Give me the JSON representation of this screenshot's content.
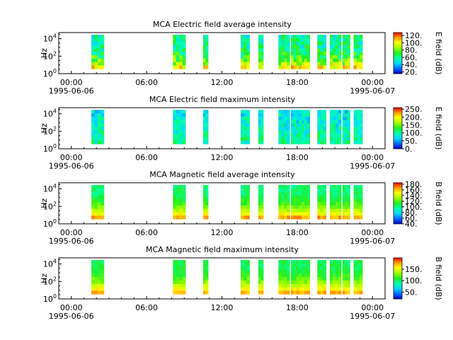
{
  "chart_data": [
    {
      "type": "heatmap",
      "title": "MCA  Electric field average intensity",
      "ylabel": "Hz",
      "colorbar_label": "E field (dB)",
      "colorbar_ticks": [
        "20.",
        "40.",
        "60.",
        "80.",
        "100.",
        "120."
      ],
      "colorbar_range": [
        15,
        128
      ],
      "y_ticks": [
        "10^0",
        "10^2",
        "10^4"
      ],
      "ylim_log10": [
        0,
        4.7
      ],
      "variant": "E_avg"
    },
    {
      "type": "heatmap",
      "title": "MCA  Electric field maximum intensity",
      "ylabel": "Hz",
      "colorbar_label": "E field (dB)",
      "colorbar_ticks": [
        "0.",
        "50.",
        "100.",
        "150.",
        "200.",
        "250."
      ],
      "colorbar_range": [
        0,
        260
      ],
      "y_ticks": [
        "10^0",
        "10^2",
        "10^4"
      ],
      "ylim_log10": [
        0,
        4.7
      ],
      "variant": "E_max"
    },
    {
      "type": "heatmap",
      "title": "MCA  Magnetic field average intensity",
      "ylabel": "Hz",
      "colorbar_label": "B field (dB)",
      "colorbar_ticks": [
        "40.",
        "60.",
        "80.",
        "100.",
        "120.",
        "140.",
        "160.",
        "180."
      ],
      "colorbar_range": [
        40,
        185
      ],
      "y_ticks": [
        "10^0",
        "10^2",
        "10^4"
      ],
      "ylim_log10": [
        0,
        4.7
      ],
      "variant": "B_avg"
    },
    {
      "type": "heatmap",
      "title": "MCA  Magnetic field maximum intensity",
      "ylabel": "Hz",
      "colorbar_label": "B field (dB)",
      "colorbar_ticks": [
        "50.",
        "100.",
        "150."
      ],
      "colorbar_range": [
        20,
        200
      ],
      "y_ticks": [
        "10^0",
        "10^2",
        "10^4"
      ],
      "ylim_log10": [
        0,
        4.7
      ],
      "variant": "B_max"
    }
  ],
  "x_axis": {
    "range_hours": [
      -1,
      25
    ],
    "ticks": [
      {
        "hour": 0,
        "time": "00:00",
        "date": "1995-06-06"
      },
      {
        "hour": 6,
        "time": "06:00",
        "date": ""
      },
      {
        "hour": 12,
        "time": "12:00",
        "date": ""
      },
      {
        "hour": 18,
        "time": "18:00",
        "date": ""
      },
      {
        "hour": 24,
        "time": "00:00",
        "date": "1995-06-07"
      }
    ]
  },
  "data_intervals_hours": [
    [
      1.6,
      2.6
    ],
    [
      8.1,
      9.1
    ],
    [
      10.5,
      10.9
    ],
    [
      13.5,
      14.2
    ],
    [
      14.9,
      15.3
    ],
    [
      16.5,
      17.4
    ],
    [
      17.5,
      19.0
    ],
    [
      19.6,
      20.3
    ],
    [
      20.6,
      21.5
    ],
    [
      21.6,
      22.2
    ],
    [
      22.5,
      23.2
    ]
  ]
}
